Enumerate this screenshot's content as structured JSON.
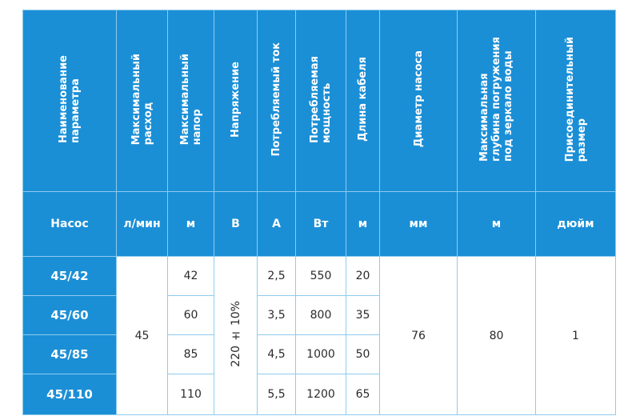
{
  "headers": [
    "Наименование\nпараметра",
    "Максимальный\nрасход",
    "Максимальный\nнапор",
    "Напряжение",
    "Потребляемый ток",
    "Потребляемая\nмощность",
    "Длина кабеля",
    "Диаметр насоса",
    "Максимальная\nглубина погружения\nпод зеркало воды",
    "Присоединительный\nразмер"
  ],
  "units": [
    "Насос",
    "л/мин",
    "м",
    "В",
    "А",
    "Вт",
    "м",
    "мм",
    "м",
    "дюйм"
  ],
  "rows": [
    {
      "pump": "45/42",
      "head": "42",
      "current": "2,5",
      "power": "550",
      "cable": "20"
    },
    {
      "pump": "45/60",
      "head": "60",
      "current": "3,5",
      "power": "800",
      "cable": "35"
    },
    {
      "pump": "45/85",
      "head": "85",
      "current": "4,5",
      "power": "1000",
      "cable": "50"
    },
    {
      "pump": "45/110",
      "head": "110",
      "current": "5,5",
      "power": "1200",
      "cable": "65"
    }
  ],
  "shared": {
    "flow": "45",
    "voltage": "220 ± 10%",
    "diameter": "76",
    "depth": "80",
    "connection": "1"
  }
}
